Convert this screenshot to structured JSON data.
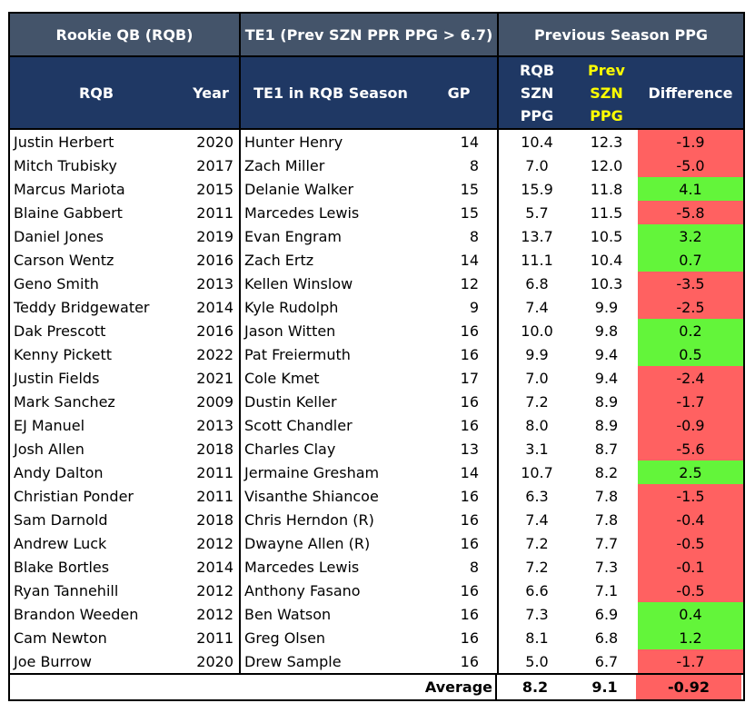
{
  "header": {
    "groups": [
      "Rookie QB (RQB)",
      "TE1 (Prev SZN PPR PPG > 6.7)",
      "Previous Season PPG"
    ],
    "columns": {
      "rqb": "RQB",
      "year": "Year",
      "te1": "TE1 in RQB Season",
      "gp": "GP",
      "rqb_ppg": [
        "RQB",
        "SZN",
        "PPG"
      ],
      "prev_ppg": [
        "Prev",
        "SZN",
        "PPG"
      ],
      "difference": "Difference"
    }
  },
  "colors": {
    "group_header_bg": "#44546a",
    "sub_header_bg": "#1f3864",
    "prev_header_text": "#ffff00",
    "negative": "#ff6161",
    "positive": "#63f53a"
  },
  "rows": [
    {
      "rqb": "Justin Herbert",
      "year": "2020",
      "te1": "Hunter Henry",
      "gp": "14",
      "rqb_ppg": "10.4",
      "prev_ppg": "12.3",
      "diff": "-1.9",
      "sign": "neg"
    },
    {
      "rqb": "Mitch Trubisky",
      "year": "2017",
      "te1": "Zach Miller",
      "gp": "8",
      "rqb_ppg": "7.0",
      "prev_ppg": "12.0",
      "diff": "-5.0",
      "sign": "neg"
    },
    {
      "rqb": "Marcus Mariota",
      "year": "2015",
      "te1": "Delanie Walker",
      "gp": "15",
      "rqb_ppg": "15.9",
      "prev_ppg": "11.8",
      "diff": "4.1",
      "sign": "pos"
    },
    {
      "rqb": "Blaine Gabbert",
      "year": "2011",
      "te1": "Marcedes Lewis",
      "gp": "15",
      "rqb_ppg": "5.7",
      "prev_ppg": "11.5",
      "diff": "-5.8",
      "sign": "neg"
    },
    {
      "rqb": "Daniel Jones",
      "year": "2019",
      "te1": "Evan Engram",
      "gp": "8",
      "rqb_ppg": "13.7",
      "prev_ppg": "10.5",
      "diff": "3.2",
      "sign": "pos"
    },
    {
      "rqb": "Carson Wentz",
      "year": "2016",
      "te1": "Zach Ertz",
      "gp": "14",
      "rqb_ppg": "11.1",
      "prev_ppg": "10.4",
      "diff": "0.7",
      "sign": "pos"
    },
    {
      "rqb": "Geno Smith",
      "year": "2013",
      "te1": "Kellen Winslow",
      "gp": "12",
      "rqb_ppg": "6.8",
      "prev_ppg": "10.3",
      "diff": "-3.5",
      "sign": "neg"
    },
    {
      "rqb": "Teddy Bridgewater",
      "year": "2014",
      "te1": "Kyle Rudolph",
      "gp": "9",
      "rqb_ppg": "7.4",
      "prev_ppg": "9.9",
      "diff": "-2.5",
      "sign": "neg"
    },
    {
      "rqb": "Dak Prescott",
      "year": "2016",
      "te1": "Jason Witten",
      "gp": "16",
      "rqb_ppg": "10.0",
      "prev_ppg": "9.8",
      "diff": "0.2",
      "sign": "pos"
    },
    {
      "rqb": "Kenny Pickett",
      "year": "2022",
      "te1": "Pat Freiermuth",
      "gp": "16",
      "rqb_ppg": "9.9",
      "prev_ppg": "9.4",
      "diff": "0.5",
      "sign": "pos"
    },
    {
      "rqb": "Justin Fields",
      "year": "2021",
      "te1": "Cole Kmet",
      "gp": "17",
      "rqb_ppg": "7.0",
      "prev_ppg": "9.4",
      "diff": "-2.4",
      "sign": "neg"
    },
    {
      "rqb": "Mark Sanchez",
      "year": "2009",
      "te1": "Dustin Keller",
      "gp": "16",
      "rqb_ppg": "7.2",
      "prev_ppg": "8.9",
      "diff": "-1.7",
      "sign": "neg"
    },
    {
      "rqb": "EJ Manuel",
      "year": "2013",
      "te1": "Scott Chandler",
      "gp": "16",
      "rqb_ppg": "8.0",
      "prev_ppg": "8.9",
      "diff": "-0.9",
      "sign": "neg"
    },
    {
      "rqb": "Josh Allen",
      "year": "2018",
      "te1": "Charles Clay",
      "gp": "13",
      "rqb_ppg": "3.1",
      "prev_ppg": "8.7",
      "diff": "-5.6",
      "sign": "neg"
    },
    {
      "rqb": "Andy Dalton",
      "year": "2011",
      "te1": "Jermaine Gresham",
      "gp": "14",
      "rqb_ppg": "10.7",
      "prev_ppg": "8.2",
      "diff": "2.5",
      "sign": "pos"
    },
    {
      "rqb": "Christian Ponder",
      "year": "2011",
      "te1": "Visanthe Shiancoe",
      "gp": "16",
      "rqb_ppg": "6.3",
      "prev_ppg": "7.8",
      "diff": "-1.5",
      "sign": "neg"
    },
    {
      "rqb": "Sam Darnold",
      "year": "2018",
      "te1": "Chris Herndon (R)",
      "gp": "16",
      "rqb_ppg": "7.4",
      "prev_ppg": "7.8",
      "diff": "-0.4",
      "sign": "neg"
    },
    {
      "rqb": "Andrew Luck",
      "year": "2012",
      "te1": "Dwayne Allen (R)",
      "gp": "16",
      "rqb_ppg": "7.2",
      "prev_ppg": "7.7",
      "diff": "-0.5",
      "sign": "neg"
    },
    {
      "rqb": "Blake Bortles",
      "year": "2014",
      "te1": "Marcedes Lewis",
      "gp": "8",
      "rqb_ppg": "7.2",
      "prev_ppg": "7.3",
      "diff": "-0.1",
      "sign": "neg"
    },
    {
      "rqb": "Ryan Tannehill",
      "year": "2012",
      "te1": "Anthony Fasano",
      "gp": "16",
      "rqb_ppg": "6.6",
      "prev_ppg": "7.1",
      "diff": "-0.5",
      "sign": "neg"
    },
    {
      "rqb": "Brandon Weeden",
      "year": "2012",
      "te1": "Ben Watson",
      "gp": "16",
      "rqb_ppg": "7.3",
      "prev_ppg": "6.9",
      "diff": "0.4",
      "sign": "pos"
    },
    {
      "rqb": "Cam Newton",
      "year": "2011",
      "te1": "Greg Olsen",
      "gp": "16",
      "rqb_ppg": "8.1",
      "prev_ppg": "6.8",
      "diff": "1.2",
      "sign": "pos"
    },
    {
      "rqb": "Joe Burrow",
      "year": "2020",
      "te1": "Drew Sample",
      "gp": "16",
      "rqb_ppg": "5.0",
      "prev_ppg": "6.7",
      "diff": "-1.7",
      "sign": "neg"
    }
  ],
  "average": {
    "label": "Average",
    "rqb_ppg": "8.2",
    "prev_ppg": "9.1",
    "diff": "-0.92",
    "sign": "neg"
  }
}
